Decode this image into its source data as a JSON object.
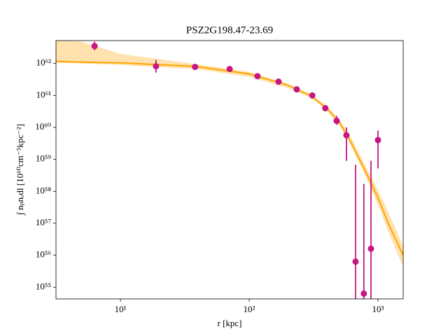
{
  "chart_data": {
    "type": "scatter",
    "title": "PSZ2G198.47-23.69",
    "x_label": "r [kpc]",
    "y_label": "∫ nₚnₑdl [10⁶⁰cm⁻⁵kpc⁻²]",
    "log_x": true,
    "log_y": true,
    "xlim": [
      3.16,
      1570
    ],
    "ylim": [
      4.3e+54,
      5.2e+62
    ],
    "xticks": [
      {
        "value": 10,
        "label": "10¹"
      },
      {
        "value": 100,
        "label": "10²"
      },
      {
        "value": 1000,
        "label": "10³"
      }
    ],
    "yticks": [
      {
        "value": 1e+55,
        "label": "10⁵⁵"
      },
      {
        "value": 1e+56,
        "label": "10⁵⁶"
      },
      {
        "value": 1e+57,
        "label": "10⁵⁷"
      },
      {
        "value": 1e+58,
        "label": "10⁵⁸"
      },
      {
        "value": 1e+59,
        "label": "10⁵⁹"
      },
      {
        "value": 1e+60,
        "label": "10⁶⁰"
      },
      {
        "value": 1e+61,
        "label": "10⁶¹"
      },
      {
        "value": 1e+62,
        "label": "10⁶²"
      }
    ],
    "color": "#c71585",
    "x": [
      6.3,
      18.9,
      38,
      70.5,
      116,
      169,
      234,
      309,
      390,
      478,
      569,
      670,
      777,
      883,
      1000
    ],
    "values": [
      3.5e+62,
      8.2e+61,
      7.8e+61,
      6.7e+61,
      4e+61,
      2.7e+61,
      1.55e+61,
      1e+61,
      4e+60,
      1.6e+60,
      5.7e+59,
      6.3e+55,
      6.3e+54,
      1.6e+56,
      4e+59
    ],
    "err_lower": [
      2.6e+62,
      5.2e+61,
      7.1e+61,
      6.1e+61,
      3.6e+61,
      2.4e+61,
      1.4e+61,
      9e+60,
      3.4e+60,
      1.2e+60,
      9e+58,
      1e+54,
      1e+54,
      1e+54,
      5.2e+58
    ],
    "err_upper": [
      4.8e+62,
      1.3e+62,
      8.6e+61,
      7.3e+61,
      4.4e+61,
      3e+61,
      1.7e+61,
      1.1e+61,
      4.6e+60,
      2.3e+60,
      1e+60,
      6.8e+58,
      1.7e+58,
      9e+58,
      8e+59
    ],
    "model": {
      "type": "line",
      "color": "#ffa500",
      "band_color": "#ffd58a",
      "x": [
        3.16,
        5,
        10,
        38,
        100,
        200,
        300,
        400,
        500,
        600,
        800,
        1000,
        1200,
        1570
      ],
      "values": [
        1.17e+62,
        1.1e+62,
        1.05e+62,
        8.1e+61,
        4.7e+61,
        2.1e+61,
        9.8e+60,
        4e+60,
        1.45e+60,
        4.3e+59,
        4.2e+58,
        6.3e+57,
        1e+57,
        9.8e+55
      ],
      "band_upper": [
        5.5e+62,
        4.8e+62,
        2e+62,
        9.6e+61,
        5.5e+61,
        2.3e+61,
        1.1e+61,
        4.6e+60,
        1.8e+60,
        6e+59,
        6.3e+58,
        1.1e+58,
        2.3e+57,
        1.9e+56
      ],
      "band_lower": [
        1.05e+62,
        1e+62,
        9e+61,
        6.7e+61,
        3.8e+61,
        1.7e+61,
        8.5e+60,
        3.4e+60,
        1.2e+60,
        3.4e+59,
        3e+58,
        3.8e+57,
        5.6e+56,
        4.3e+55
      ]
    }
  }
}
